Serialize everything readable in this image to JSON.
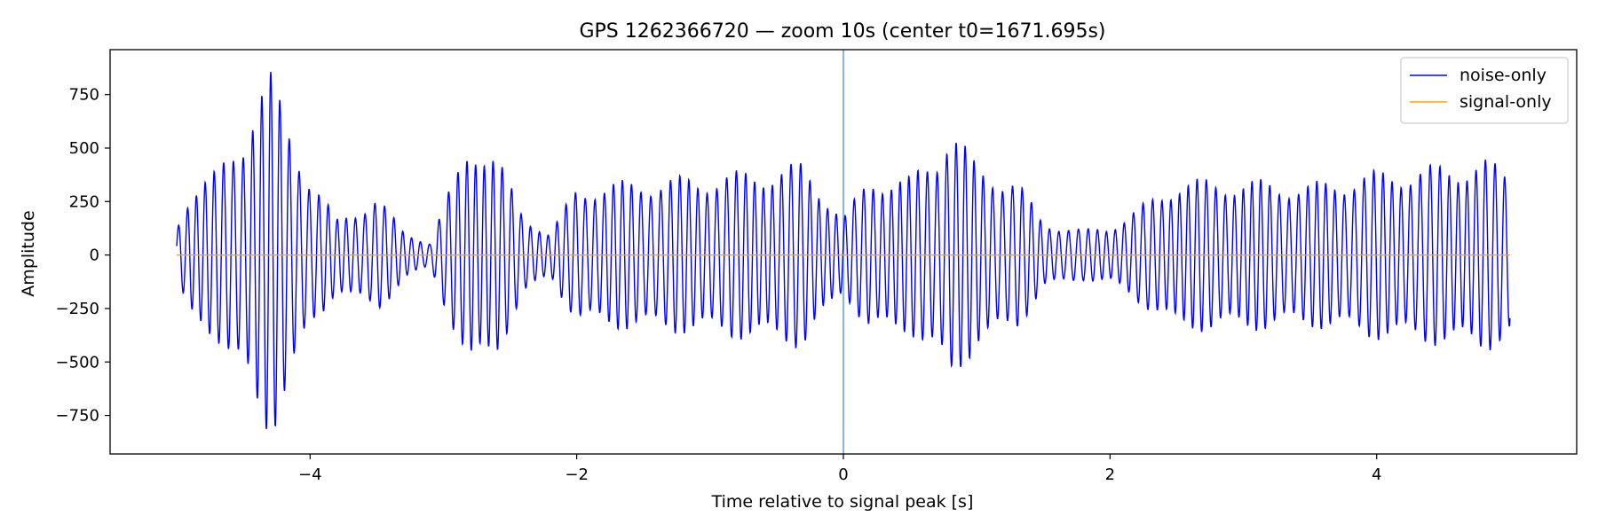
{
  "chart_data": {
    "type": "line",
    "title": "GPS 1262366720 — zoom 10s (center t0=1671.695s)",
    "xlabel": "Time relative to signal peak [s]",
    "ylabel": "Amplitude",
    "xlim": [
      -5.5,
      5.5
    ],
    "ylim": [
      -930,
      960
    ],
    "xticks": [
      -4,
      -2,
      0,
      2,
      4
    ],
    "xtick_labels": [
      "−4",
      "−2",
      "0",
      "2",
      "4"
    ],
    "yticks": [
      -750,
      -500,
      -250,
      0,
      250,
      500,
      750
    ],
    "ytick_labels": [
      "−750",
      "−500",
      "−250",
      "0",
      "250",
      "500",
      "750"
    ],
    "grid": false,
    "legend_position": "top-right",
    "vline": {
      "x": 0,
      "color": "#8fb8e0"
    },
    "series": [
      {
        "name": "noise-only",
        "color": "#0000ff",
        "x_range": [
          -5,
          5
        ],
        "carrier_freq_hz": 14.4,
        "envelope": {
          "x": [
            -5.0,
            -4.9,
            -4.7,
            -4.5,
            -4.4,
            -4.3,
            -4.2,
            -4.0,
            -3.8,
            -3.5,
            -3.3,
            -3.1,
            -2.9,
            -2.8,
            -2.6,
            -2.4,
            -2.2,
            -2.0,
            -1.5,
            -1.0,
            -0.5,
            -0.3,
            0.0,
            0.2,
            0.5,
            0.7,
            0.8,
            1.0,
            1.3,
            1.5,
            1.8,
            2.0,
            2.2,
            2.5,
            3.0,
            3.5,
            4.0,
            4.5,
            4.8,
            5.0
          ],
          "y": [
            150,
            320,
            400,
            600,
            780,
            870,
            700,
            380,
            170,
            280,
            120,
            60,
            400,
            580,
            470,
            200,
            100,
            330,
            360,
            380,
            420,
            440,
            180,
            380,
            370,
            500,
            630,
            430,
            360,
            160,
            120,
            140,
            220,
            360,
            360,
            340,
            400,
            430,
            460,
            400
          ]
        }
      },
      {
        "name": "signal-only",
        "color": "#ffa500",
        "x_range": [
          -5,
          5
        ],
        "value": 0
      }
    ]
  }
}
